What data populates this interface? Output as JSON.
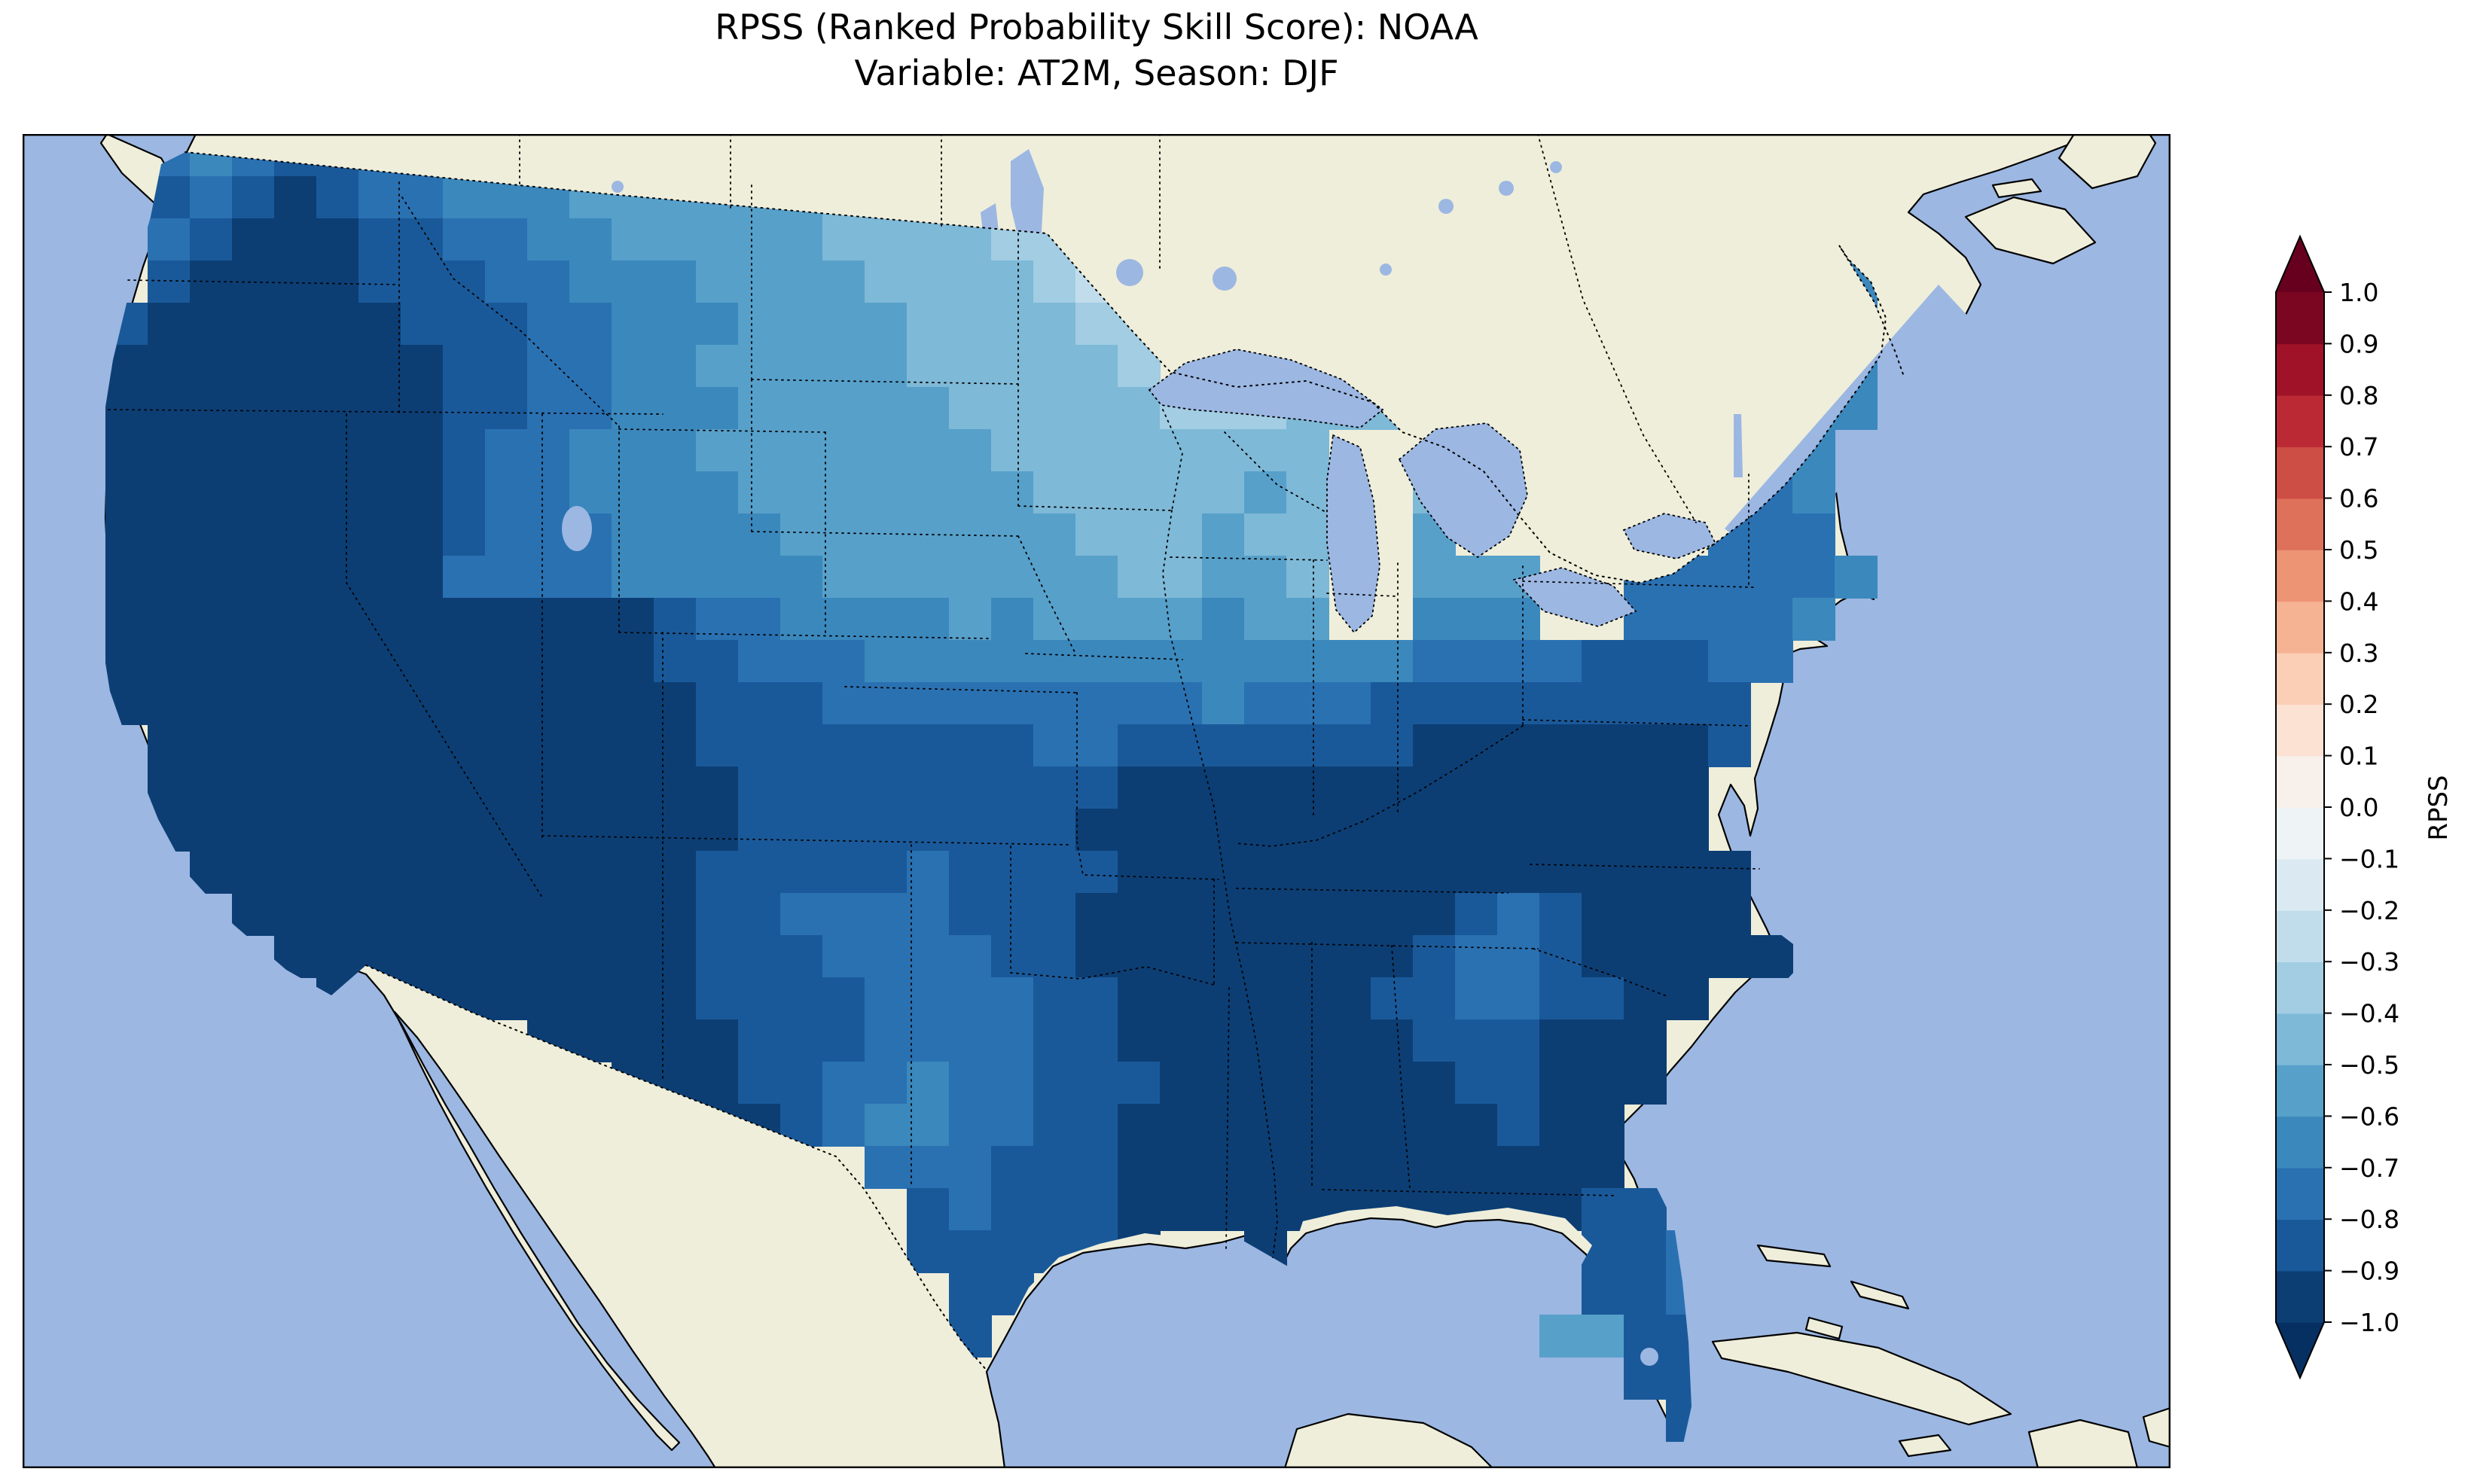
{
  "title": {
    "line1": "RPSS (Ranked Probability Skill Score): NOAA",
    "line2": "Variable: AT2M, Season: DJF"
  },
  "colorbar": {
    "label": "RPSS",
    "tick_labels": [
      "1.0",
      "0.9",
      "0.8",
      "0.7",
      "0.6",
      "0.5",
      "0.4",
      "0.3",
      "0.2",
      "0.1",
      "0.0",
      "−0.1",
      "−0.2",
      "−0.3",
      "−0.4",
      "−0.5",
      "−0.6",
      "−0.7",
      "−0.8",
      "−0.9",
      "−1.0"
    ],
    "colors_low_to_high": [
      "#0c3e74",
      "#1a5999",
      "#2a71b2",
      "#3b88bd",
      "#57a0ca",
      "#7eb9d7",
      "#a2cde3",
      "#c1ddec",
      "#dbeaf2",
      "#eef3f5",
      "#f8f0eb",
      "#fce2d3",
      "#fbceb6",
      "#f6b393",
      "#ed9475",
      "#de715a",
      "#cd4e45",
      "#bb2a34",
      "#9f1228",
      "#7a0622"
    ],
    "under_color": "#053061",
    "over_color": "#67001f"
  },
  "map": {
    "ocean_color": "#9cb7e2",
    "land_color": "#efeeda",
    "coastline_color": "#000000"
  },
  "chart_data": {
    "type": "heatmap",
    "title": "RPSS (Ranked Probability Skill Score): NOAA — Variable: AT2M, Season: DJF",
    "colorbar_label": "RPSS",
    "value_range": [
      -1.0,
      1.0
    ],
    "bin_width": 0.1,
    "region": "Contiguous United States (gridded RPSS values); Canada, Mexico and ocean masked",
    "grid": {
      "origin_u": 55,
      "origin_v": 0,
      "cell_size": 28,
      "encoding": {
        "a": [
          -1.0,
          -0.9
        ],
        "b": [
          -0.9,
          -0.8
        ],
        "c": [
          -0.8,
          -0.7
        ],
        "d": [
          -0.7,
          -0.6
        ],
        "e": [
          -0.6,
          -0.5
        ],
        "f": [
          -0.5,
          -0.4
        ],
        "g": [
          -0.4,
          -0.3
        ],
        "h": [
          -0.3,
          -0.2
        ],
        ".": null
      },
      "rows": [
        ".cdcbbccd.................................",
        ".bcbabccdddeeeeeefe.......................",
        ".cbaaabbccddeeeeeffffgghg.................",
        ".baaaabbbccdddeeeeffffghhg..............dd",
        "baaaaaabbbccdddeeeeffffgggg............dcd",
        "aaaaaaaabbccddeeeeefffffg.............dccd",
        "aaaaaaaabbccdddeeeeefffffgggffff......dcdd",
        "aaaaaaaabccdddeeeeeeeffffffff.......dcccd.",
        "aaaaaaaabccddddeeeeeeefffffef..f....dddcd.",
        "aaaaaaaabcccddddeeeeeeefffeff..e......ccc.",
        "aaaaaaaaccccdddddeeeeeeeffeef..eee..cccccd",
        "aaaaaaaaaaaaabccddddedeeeedee..ddd..ccccd.",
        "aaaaaaaaaaaaabbcccdddddddddddddccccbbbcc..",
        "aaaaaaaaaaaaaabbbcccccccccdcccbbbbbbbbb...",
        ".aaaaaaaaaaaaabbbbbbbbccbbbbbbbaaaaaaab...",
        ".aaaaaaaaaaaaaabbbbbbbbbaaaaaaaaaaaaaa....",
        ".aaaaaaaaaaaaaabbbbbbbbaaaaaaaaaaaaaaa....",
        "..aaaaaaaaaaaabbbbbcbbbbaaaaaaaaaaaaaaa...",
        "...aaaaaaaaaaabbccccbbbaaaaaaaaabcbaaaa...",
        "....aaaaaaaaaabbbccccbbaaaaaaaabccbaaaaa..",
        ".....aaaaaaaaabbbbccccbbaaaaaabbccbbaa....",
        "..........aaaaabbbccccbbaaaaaaabbbaaa.....",
        "............aaabbccdccbbbaaaaaaabbaaa.....",
        "..............aabcddccbbaaaaaaaaabaa......",
        "..................cccbbbaaaaaaaaaaaa......",
        "...................bcbbbaaaaaaaaaaabb.....",
        "...................bbbbba..a.......bbc....",
        "....................bb.............bbc....",
        "....................b.............eebb....",
        "....................................bb....",
        ".....................................b...."
      ]
    }
  }
}
